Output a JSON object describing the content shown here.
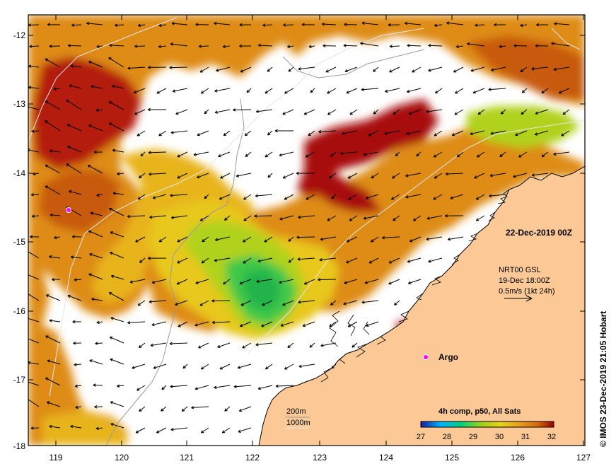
{
  "map": {
    "date_stamp": "22-Dec-2019 00Z",
    "current_info": {
      "line1": "NRT00 GSL",
      "line2": "19-Dec 18:00Z",
      "line3": "0.5m/s (1kt 24h)"
    },
    "argo_label": "Argo",
    "bathymetry_legend": [
      "200m",
      "1000m"
    ],
    "colorbar": {
      "title": "4h comp, p50, All Sats",
      "ticks": [
        "27",
        "28",
        "29",
        "30",
        "31",
        "32"
      ],
      "colors": [
        "#1a1aa0",
        "#00b4ff",
        "#00d080",
        "#9ad21a",
        "#e8d21a",
        "#e89a1a",
        "#d46a0a",
        "#a00000"
      ]
    },
    "credit": "© IMOS 23-Dec-2019 21:05 Hobart",
    "axes": {
      "x_ticks": [
        "119",
        "120",
        "121",
        "122",
        "123",
        "124",
        "125",
        "126",
        "127"
      ],
      "y_ticks": [
        "-12",
        "-13",
        "-14",
        "-15",
        "-16",
        "-17",
        "-18"
      ]
    },
    "colors": {
      "land": "#fcc896",
      "frame": "#000000"
    }
  }
}
